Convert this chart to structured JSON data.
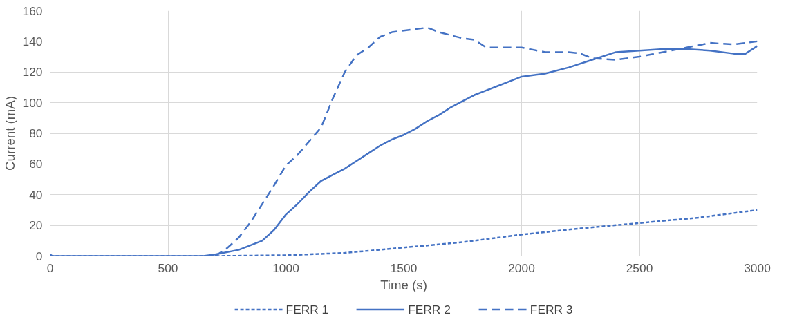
{
  "chart_data": {
    "type": "line",
    "xlabel": "Time (s)",
    "ylabel": "Current (mA)",
    "xlim": [
      0,
      3000
    ],
    "xticks": [
      0,
      500,
      1000,
      1500,
      2000,
      2500,
      3000
    ],
    "ylim": [
      0,
      160
    ],
    "yticks": [
      0,
      20,
      40,
      60,
      80,
      100,
      120,
      140,
      160
    ],
    "grid": true,
    "legend": "bottom",
    "marker": "none",
    "series": [
      {
        "name": "FERR 1",
        "color": "#4472c4",
        "line_style": "dotted",
        "x": [
          0,
          500,
          700,
          1000,
          1250,
          1500,
          1750,
          2000,
          2250,
          2500,
          2750,
          3000
        ],
        "values": [
          0,
          0,
          0,
          0.5,
          2,
          5.5,
          9,
          14,
          18,
          21.5,
          25,
          30
        ]
      },
      {
        "name": "FERR 2",
        "color": "#4472c4",
        "line_style": "solid",
        "x": [
          0,
          10,
          50,
          300,
          650,
          700,
          800,
          900,
          950,
          1000,
          1050,
          1100,
          1150,
          1200,
          1250,
          1300,
          1350,
          1400,
          1450,
          1500,
          1550,
          1600,
          1650,
          1700,
          1750,
          1800,
          1850,
          1900,
          1950,
          2000,
          2100,
          2200,
          2300,
          2400,
          2500,
          2600,
          2700,
          2800,
          2900,
          2950,
          3000
        ],
        "values": [
          1,
          0,
          0,
          0,
          0,
          1,
          4,
          10,
          17,
          27,
          34,
          42,
          49,
          53,
          57,
          62,
          67,
          72,
          76,
          79,
          83,
          88,
          92,
          97,
          101,
          105,
          108,
          111,
          114,
          117,
          119,
          123,
          128,
          133,
          134,
          135,
          135,
          134,
          132,
          132,
          137
        ]
      },
      {
        "name": "FERR 3",
        "color": "#4472c4",
        "line_style": "dashed",
        "x": [
          700,
          750,
          800,
          850,
          900,
          950,
          1000,
          1050,
          1100,
          1150,
          1200,
          1250,
          1300,
          1350,
          1400,
          1450,
          1500,
          1550,
          1600,
          1650,
          1700,
          1750,
          1800,
          1850,
          1900,
          2000,
          2100,
          2200,
          2250,
          2300,
          2400,
          2500,
          2600,
          2700,
          2800,
          2900,
          3000
        ],
        "values": [
          0,
          5,
          12,
          22,
          34,
          46,
          59,
          66,
          75,
          84,
          103,
          120,
          131,
          136,
          143,
          146,
          147,
          148,
          149,
          146,
          144,
          142,
          141,
          136,
          136,
          136,
          133,
          133,
          132,
          129,
          128,
          130,
          133,
          136,
          139,
          138,
          140
        ]
      }
    ]
  }
}
